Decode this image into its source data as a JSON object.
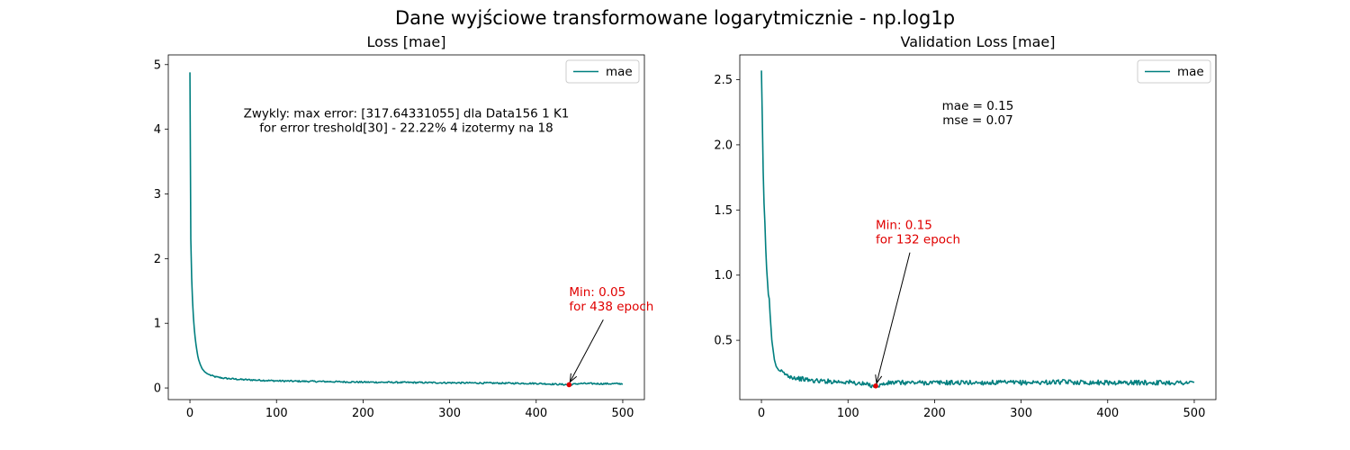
{
  "figure": {
    "suptitle": "Dane wyjściowe transformowane logarytmicznie - np.log1p",
    "line_color": "#007f7f",
    "min_marker_color": "#e00000"
  },
  "chart_data": [
    {
      "type": "line",
      "title": "Loss [mae]",
      "xlabel": "",
      "ylabel": "",
      "xlim": [
        -25,
        525
      ],
      "ylim": [
        -0.18,
        5.15
      ],
      "xticks": [
        0,
        100,
        200,
        300,
        400,
        500
      ],
      "yticks": [
        0,
        1,
        2,
        3,
        4,
        5
      ],
      "grid": false,
      "legend": {
        "position": "top-right",
        "entries": [
          "mae"
        ]
      },
      "series": [
        {
          "name": "mae",
          "color": "#007f7f",
          "points": [
            [
              0,
              4.88
            ],
            [
              1,
              2.3
            ],
            [
              2,
              1.7
            ],
            [
              3,
              1.35
            ],
            [
              4,
              1.1
            ],
            [
              5,
              0.92
            ],
            [
              6,
              0.78
            ],
            [
              7,
              0.67
            ],
            [
              8,
              0.58
            ],
            [
              9,
              0.5
            ],
            [
              10,
              0.44
            ],
            [
              12,
              0.36
            ],
            [
              14,
              0.3
            ],
            [
              17,
              0.25
            ],
            [
              20,
              0.22
            ],
            [
              25,
              0.19
            ],
            [
              30,
              0.17
            ],
            [
              40,
              0.15
            ],
            [
              50,
              0.14
            ],
            [
              60,
              0.13
            ],
            [
              70,
              0.125
            ],
            [
              80,
              0.12
            ],
            [
              100,
              0.11
            ],
            [
              120,
              0.105
            ],
            [
              150,
              0.1
            ],
            [
              200,
              0.09
            ],
            [
              250,
              0.085
            ],
            [
              300,
              0.08
            ],
            [
              350,
              0.075
            ],
            [
              400,
              0.07
            ],
            [
              438,
              0.05
            ],
            [
              450,
              0.068
            ],
            [
              480,
              0.065
            ],
            [
              500,
              0.065
            ]
          ],
          "noise": 0.012
        }
      ],
      "min_point": {
        "x": 438,
        "y": 0.05,
        "label_line1": "Min: 0.05",
        "label_line2": "for 438 epoch",
        "text_x": 438,
        "text_y": 1.25
      },
      "text_box": {
        "lines": [
          "Zwykly: max error: [317.64331055]  dla Data156 1 K1",
          "for error treshold[30] - 22.22%     4 izotermy na 18"
        ],
        "x": 250,
        "y": 4.18
      }
    },
    {
      "type": "line",
      "title": "Validation Loss [mae]",
      "xlabel": "",
      "ylabel": "",
      "xlim": [
        -25,
        525
      ],
      "ylim": [
        0.045,
        2.69
      ],
      "xticks": [
        0,
        100,
        200,
        300,
        400,
        500
      ],
      "yticks": [
        0.5,
        1.0,
        1.5,
        2.0,
        2.5
      ],
      "grid": false,
      "legend": {
        "position": "top-right",
        "entries": [
          "mae"
        ]
      },
      "series": [
        {
          "name": "mae",
          "color": "#007f7f",
          "points": [
            [
              0,
              2.57
            ],
            [
              1,
              2.2
            ],
            [
              2,
              1.8
            ],
            [
              3,
              1.55
            ],
            [
              4,
              1.4
            ],
            [
              5,
              1.2
            ],
            [
              6,
              1.05
            ],
            [
              7,
              0.95
            ],
            [
              8,
              0.85
            ],
            [
              9,
              0.82
            ],
            [
              10,
              0.7
            ],
            [
              11,
              0.6
            ],
            [
              12,
              0.5
            ],
            [
              13,
              0.45
            ],
            [
              14,
              0.4
            ],
            [
              15,
              0.35
            ],
            [
              17,
              0.3
            ],
            [
              20,
              0.27
            ],
            [
              25,
              0.25
            ],
            [
              30,
              0.23
            ],
            [
              40,
              0.21
            ],
            [
              50,
              0.2
            ],
            [
              60,
              0.19
            ],
            [
              80,
              0.185
            ],
            [
              100,
              0.18
            ],
            [
              132,
              0.15
            ],
            [
              150,
              0.175
            ],
            [
              200,
              0.175
            ],
            [
              250,
              0.175
            ],
            [
              300,
              0.175
            ],
            [
              350,
              0.18
            ],
            [
              400,
              0.175
            ],
            [
              450,
              0.175
            ],
            [
              500,
              0.175
            ]
          ],
          "noise": 0.018
        }
      ],
      "min_point": {
        "x": 132,
        "y": 0.15,
        "label_line1": "Min: 0.15",
        "label_line2": "for 132 epoch",
        "text_x": 132,
        "text_y": 1.27
      },
      "text_box": {
        "lines": [
          "mae = 0.15",
          "mse = 0.07"
        ],
        "x": 250,
        "y": 2.27
      }
    }
  ]
}
